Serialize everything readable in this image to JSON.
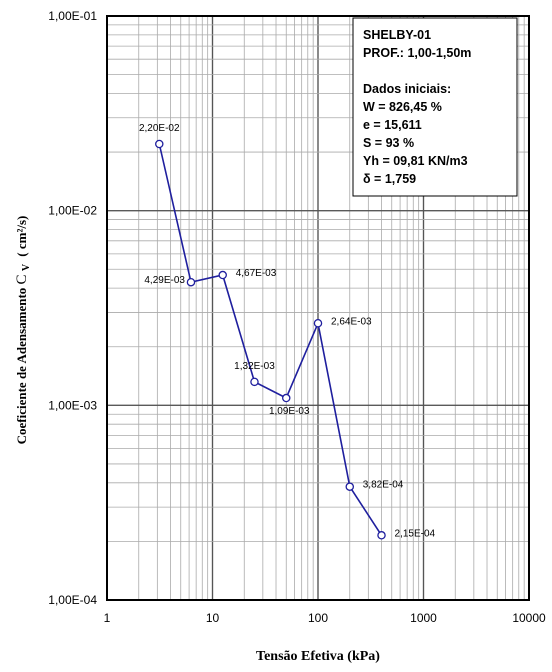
{
  "chart_data": {
    "type": "line",
    "title": "",
    "xlabel": "Tensão Efetiva (kPa)",
    "ylabel": "Coeficiente de Adensamento",
    "ylabel_symbol": "C",
    "ylabel_subscript": "V",
    "ylabel_unit": "( cm²/s)",
    "x_scale": "log",
    "y_scale": "log",
    "xlim": [
      1,
      10000
    ],
    "ylim": [
      0.0001,
      0.1
    ],
    "grid": true,
    "x_ticks": [
      {
        "value": 1,
        "label": "1"
      },
      {
        "value": 10,
        "label": "10"
      },
      {
        "value": 100,
        "label": "100"
      },
      {
        "value": 1000,
        "label": "1000"
      },
      {
        "value": 10000,
        "label": "10000"
      }
    ],
    "y_ticks": [
      {
        "value": 0.0001,
        "label": "1,00E-04"
      },
      {
        "value": 0.001,
        "label": "1,00E-03"
      },
      {
        "value": 0.01,
        "label": "1,00E-02"
      },
      {
        "value": 0.1,
        "label": "1,00E-01"
      }
    ],
    "series": [
      {
        "color": "#1f1f9e",
        "points": [
          {
            "x": 3.13,
            "y": 0.022,
            "label": "2,20E-02",
            "anchor": "above"
          },
          {
            "x": 6.25,
            "y": 0.00429,
            "label": "4,29E-03",
            "anchor": "left"
          },
          {
            "x": 12.5,
            "y": 0.00467,
            "label": "4,67E-03",
            "anchor": "right"
          },
          {
            "x": 25,
            "y": 0.00132,
            "label": "1,32E-03",
            "anchor": "above"
          },
          {
            "x": 50,
            "y": 0.00109,
            "label": "1,09E-03",
            "anchor": "below-right"
          },
          {
            "x": 100,
            "y": 0.00264,
            "label": "2,64E-03",
            "anchor": "right"
          },
          {
            "x": 200,
            "y": 0.000382,
            "label": "3,82E-04",
            "anchor": "right"
          },
          {
            "x": 400,
            "y": 0.000215,
            "label": "2,15E-04",
            "anchor": "right"
          }
        ]
      }
    ],
    "annotation_box": {
      "position": "top-right",
      "lines": [
        "SHELBY-01",
        "PROF.: 1,00-1,50m",
        "",
        "Dados iniciais:",
        "W = 826,45 %",
        "e = 15,611",
        "S = 93 %",
        "Yh = 09,81 KN/m3",
        "δ = 1,759"
      ]
    }
  }
}
